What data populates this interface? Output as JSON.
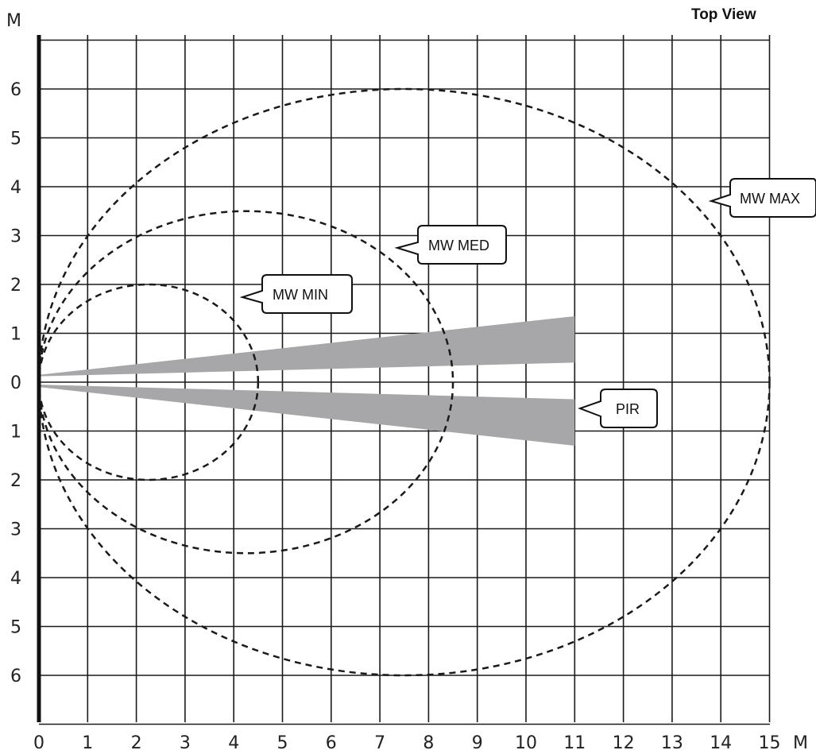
{
  "view_title": "Top View",
  "axes": {
    "x_unit": "M",
    "y_unit": "M",
    "x_range": [
      0,
      15
    ],
    "y_range": [
      -7,
      7
    ],
    "x_ticks": [
      "0",
      "1",
      "2",
      "3",
      "4",
      "5",
      "6",
      "7",
      "8",
      "9",
      "10",
      "11",
      "12",
      "13",
      "14",
      "15"
    ],
    "y_ticks": [
      {
        "value": 6,
        "label": "6"
      },
      {
        "value": 5,
        "label": "5"
      },
      {
        "value": 4,
        "label": "4"
      },
      {
        "value": 3,
        "label": "3"
      },
      {
        "value": 2,
        "label": "2"
      },
      {
        "value": 1,
        "label": "1"
      },
      {
        "value": 0,
        "label": "0"
      },
      {
        "value": -1,
        "label": "1"
      },
      {
        "value": -2,
        "label": "2"
      },
      {
        "value": -3,
        "label": "3"
      },
      {
        "value": -4,
        "label": "4"
      },
      {
        "value": -5,
        "label": "5"
      },
      {
        "value": -6,
        "label": "6"
      }
    ],
    "grid": true
  },
  "zones": {
    "mw_min": {
      "label": "MW MIN",
      "reach_m": 4.5,
      "half_width_m": 2
    },
    "mw_med": {
      "label": "MW MED",
      "reach_m": 8.5,
      "half_width_m": 3.5
    },
    "mw_max": {
      "label": "MW MAX",
      "reach_m": 15,
      "half_width_m": 6
    },
    "pir": {
      "label": "PIR",
      "reach_m": 11,
      "upper_beam_at_reach_m": [
        0.4,
        1.35
      ],
      "lower_beam_at_reach_m": [
        -0.35,
        -1.3
      ],
      "color": "#a7a7a9"
    }
  },
  "colors": {
    "grid": "#1a1a1a",
    "dashes": "#1a1a1a",
    "pir_fill": "#a7a7a9"
  }
}
